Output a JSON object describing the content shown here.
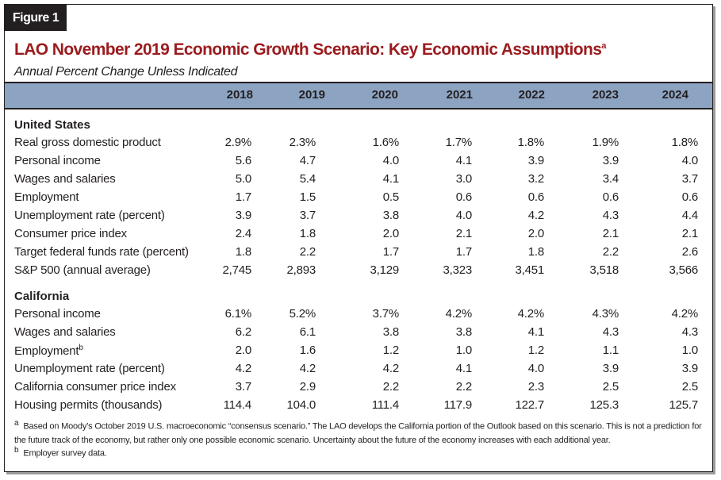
{
  "figure_label": "Figure 1",
  "title": "LAO November 2019 Economic Growth Scenario: Key Economic Assumptions",
  "title_note": "a",
  "subtitle": "Annual Percent Change Unless Indicated",
  "years": [
    "2018",
    "2019",
    "2020",
    "2021",
    "2022",
    "2023",
    "2024"
  ],
  "sections": [
    {
      "heading": "United States",
      "rows": [
        {
          "label": "Real gross domestic product",
          "values": [
            "2.9%",
            "2.3%",
            "1.6%",
            "1.7%",
            "1.8%",
            "1.9%",
            "1.8%"
          ]
        },
        {
          "label": "Personal income",
          "values": [
            "5.6",
            "4.7",
            "4.0",
            "4.1",
            "3.9",
            "3.9",
            "4.0"
          ]
        },
        {
          "label": "Wages and salaries",
          "values": [
            "5.0",
            "5.4",
            "4.1",
            "3.0",
            "3.2",
            "3.4",
            "3.7"
          ]
        },
        {
          "label": "Employment",
          "values": [
            "1.7",
            "1.5",
            "0.5",
            "0.6",
            "0.6",
            "0.6",
            "0.6"
          ]
        },
        {
          "label": "Unemployment rate (percent)",
          "values": [
            "3.9",
            "3.7",
            "3.8",
            "4.0",
            "4.2",
            "4.3",
            "4.4"
          ]
        },
        {
          "label": "Consumer price index",
          "values": [
            "2.4",
            "1.8",
            "2.0",
            "2.1",
            "2.0",
            "2.1",
            "2.1"
          ]
        },
        {
          "label": "Target federal funds rate (percent)",
          "values": [
            "1.8",
            "2.2",
            "1.7",
            "1.7",
            "1.8",
            "2.2",
            "2.6"
          ]
        },
        {
          "label": "S&P 500 (annual average)",
          "values": [
            "2,745",
            "2,893",
            "3,129",
            "3,323",
            "3,451",
            "3,518",
            "3,566"
          ]
        }
      ]
    },
    {
      "heading": "California",
      "rows": [
        {
          "label": "Personal income",
          "values": [
            "6.1%",
            "5.2%",
            "3.7%",
            "4.2%",
            "4.2%",
            "4.3%",
            "4.2%"
          ]
        },
        {
          "label": "Wages and salaries",
          "values": [
            "6.2",
            "6.1",
            "3.8",
            "3.8",
            "4.1",
            "4.3",
            "4.3"
          ]
        },
        {
          "label": "Employment",
          "note": "b",
          "values": [
            "2.0",
            "1.6",
            "1.2",
            "1.0",
            "1.2",
            "1.1",
            "1.0"
          ]
        },
        {
          "label": "Unemployment rate (percent)",
          "values": [
            "4.2",
            "4.2",
            "4.2",
            "4.1",
            "4.0",
            "3.9",
            "3.9"
          ]
        },
        {
          "label": "California consumer price index",
          "values": [
            "3.7",
            "2.9",
            "2.2",
            "2.2",
            "2.3",
            "2.5",
            "2.5"
          ]
        },
        {
          "label": "Housing permits (thousands)",
          "values": [
            "114.4",
            "104.0",
            "111.4",
            "117.9",
            "122.7",
            "125.3",
            "125.7"
          ]
        }
      ]
    }
  ],
  "footnotes": [
    {
      "mark": "a",
      "text": "Based on Moody’s October 2019 U.S. macroeconomic “consensus scenario.” The LAO develops the California portion of the Outlook based on this scenario. This is not a prediction for the future track of the economy, but rather only one possible economic scenario. Uncertainty about the future of the economy increases with each additional year."
    },
    {
      "mark": "b",
      "text": "Employer survey data."
    }
  ]
}
